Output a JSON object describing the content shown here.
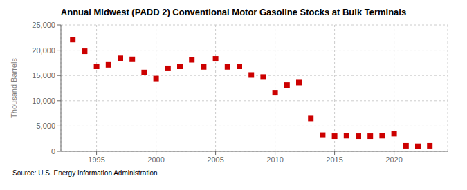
{
  "chart_data": {
    "type": "scatter",
    "title": "Annual Midwest (PADD 2) Conventional Motor Gasoline Stocks at Bulk Terminals",
    "y_label": "Thousand Barrels",
    "annotations": [
      "Source: U.S. Energy Information Administration"
    ],
    "x": [
      1993,
      1994,
      1995,
      1996,
      1997,
      1998,
      1999,
      2000,
      2001,
      2002,
      2003,
      2004,
      2005,
      2006,
      2007,
      2008,
      2009,
      2010,
      2011,
      2012,
      2013,
      2014,
      2015,
      2016,
      2017,
      2018,
      2019,
      2020,
      2021,
      2022,
      2023
    ],
    "values": [
      22100,
      19800,
      16800,
      17100,
      18400,
      18200,
      15600,
      14400,
      16400,
      16800,
      18100,
      16700,
      18300,
      16700,
      16800,
      15100,
      14700,
      11600,
      13100,
      13600,
      6500,
      3200,
      3000,
      3100,
      3000,
      3000,
      3100,
      3500,
      1100,
      1000,
      1100
    ],
    "color": "#cc0000",
    "marker": "square",
    "xlim": [
      1992,
      2024.5
    ],
    "xticks": [
      1995,
      2000,
      2005,
      2010,
      2015,
      2020
    ],
    "ylim": [
      0,
      25000
    ],
    "yticks": [
      0,
      {
        "value": 5000,
        "label": "5,000"
      },
      {
        "value": 10000,
        "label": "10,000"
      },
      {
        "value": 15000,
        "label": "15,000"
      },
      {
        "value": 20000,
        "label": "20,000"
      },
      {
        "value": 25000,
        "label": "25,000"
      }
    ],
    "grid": true
  }
}
